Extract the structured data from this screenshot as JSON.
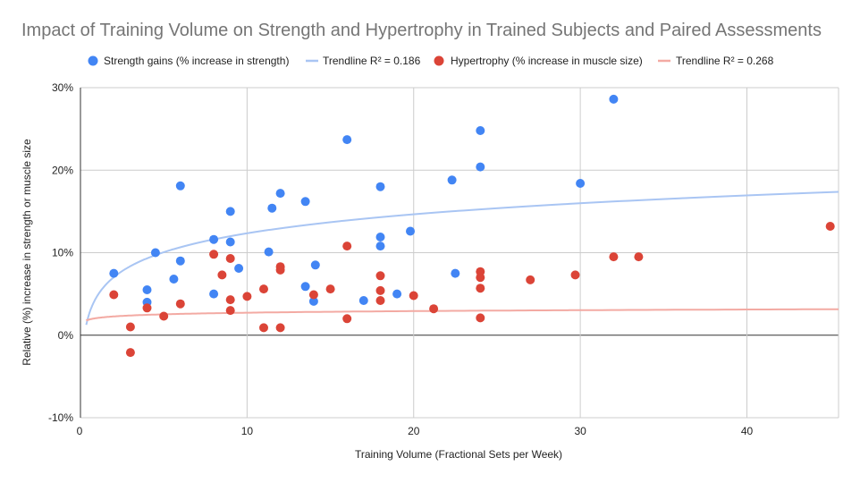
{
  "chart_data": {
    "type": "scatter",
    "title": "Impact of Training Volume on Strength and Hypertrophy in Trained Subjects and Paired Assessments",
    "xlabel": "Training Volume (Fractional Sets per Week)",
    "ylabel": "Relative (%) increase in strength or muscle size",
    "xlim": [
      0,
      45.5
    ],
    "ylim": [
      -10,
      30
    ],
    "x_ticks": [
      "0",
      "10",
      "20",
      "30",
      "40"
    ],
    "x_tick_values": [
      0,
      10,
      20,
      30,
      40
    ],
    "y_ticks": [
      "-10%",
      "0%",
      "10%",
      "20%",
      "30%"
    ],
    "y_tick_values": [
      -10,
      0,
      10,
      20,
      30
    ],
    "grid": true,
    "legend_position": "top",
    "legend": [
      {
        "label": "Strength gains (% increase in strength)",
        "kind": "marker",
        "color": "#4285f4"
      },
      {
        "label": "Trendline R² = 0.186",
        "kind": "line",
        "color": "#a9c5f3"
      },
      {
        "label": "Hypertrophy (% increase in muscle size)",
        "kind": "marker",
        "color": "#db4437"
      },
      {
        "label": "Trendline R² = 0.268",
        "kind": "line",
        "color": "#f3aaa3"
      }
    ],
    "series": [
      {
        "name": "Strength gains (% increase in strength)",
        "color": "#4285f4",
        "points": [
          [
            2,
            7.5
          ],
          [
            4,
            5.5
          ],
          [
            4,
            4.0
          ],
          [
            4.5,
            10.0
          ],
          [
            5.6,
            6.8
          ],
          [
            6,
            9.0
          ],
          [
            6,
            18.1
          ],
          [
            8,
            11.6
          ],
          [
            8,
            5.0
          ],
          [
            9,
            15.0
          ],
          [
            9,
            11.3
          ],
          [
            9.5,
            8.1
          ],
          [
            11.3,
            10.1
          ],
          [
            11.5,
            15.4
          ],
          [
            12,
            17.2
          ],
          [
            13.5,
            16.2
          ],
          [
            13.5,
            5.9
          ],
          [
            14,
            4.1
          ],
          [
            14.1,
            8.5
          ],
          [
            16,
            23.7
          ],
          [
            17,
            4.2
          ],
          [
            18,
            18.0
          ],
          [
            18,
            11.9
          ],
          [
            18,
            10.8
          ],
          [
            19,
            5.0
          ],
          [
            19.8,
            12.6
          ],
          [
            22.3,
            18.8
          ],
          [
            22.5,
            7.5
          ],
          [
            24,
            24.8
          ],
          [
            24,
            20.4
          ],
          [
            30,
            18.4
          ],
          [
            32,
            28.6
          ]
        ],
        "trendline": {
          "type": "logarithmic",
          "a": 3.31,
          "b": 4.73,
          "r2_label": "Trendline R² = 0.186",
          "color": "#a9c5f3"
        }
      },
      {
        "name": "Hypertrophy (% increase in muscle size)",
        "color": "#db4437",
        "points": [
          [
            2,
            4.9
          ],
          [
            3,
            1.0
          ],
          [
            3,
            -2.1
          ],
          [
            4,
            3.3
          ],
          [
            5,
            2.3
          ],
          [
            6,
            3.8
          ],
          [
            8,
            9.8
          ],
          [
            8.5,
            7.3
          ],
          [
            9,
            9.3
          ],
          [
            9,
            4.3
          ],
          [
            9,
            3.0
          ],
          [
            10,
            4.7
          ],
          [
            11,
            5.6
          ],
          [
            11,
            0.9
          ],
          [
            12,
            8.3
          ],
          [
            12,
            7.9
          ],
          [
            12,
            0.9
          ],
          [
            14,
            4.9
          ],
          [
            15,
            5.6
          ],
          [
            16,
            10.8
          ],
          [
            16,
            2.0
          ],
          [
            18,
            7.2
          ],
          [
            18,
            5.4
          ],
          [
            18,
            4.2
          ],
          [
            20,
            4.8
          ],
          [
            21.2,
            3.2
          ],
          [
            24,
            7.7
          ],
          [
            24,
            7.0
          ],
          [
            24,
            5.7
          ],
          [
            24,
            2.1
          ],
          [
            27,
            6.7
          ],
          [
            29.7,
            7.3
          ],
          [
            32,
            9.5
          ],
          [
            33.5,
            9.5
          ],
          [
            45,
            13.2
          ]
        ],
        "trendline": {
          "type": "logarithmic",
          "a": 0.28,
          "b": 2.08,
          "r2_label": "Trendline R² = 0.268",
          "color": "#f3aaa3"
        }
      }
    ]
  }
}
